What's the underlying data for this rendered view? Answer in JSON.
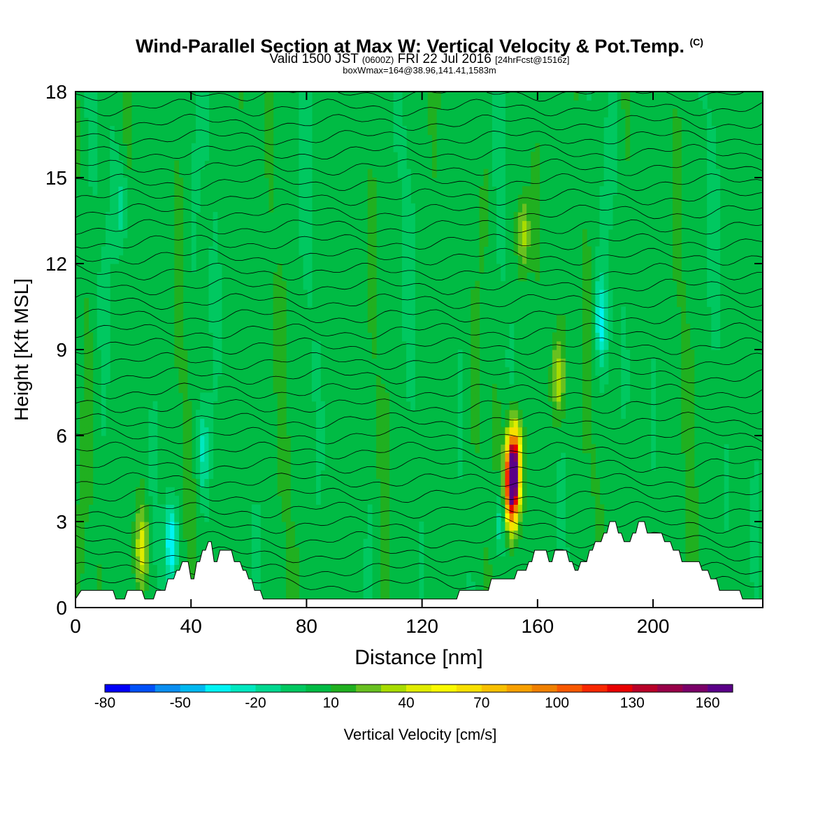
{
  "header": {
    "title": "Wind-Parallel Section at Max W: Vertical Velocity & Pot.Temp.",
    "copyright": "(C)",
    "valid_prefix": "Valid 1500 JST",
    "zulu": "(0600Z)",
    "valid_date": "FRI 22 Jul 2016",
    "forecast": "[24hrFcst@1516z]",
    "boxinfo": "boxWmax=164@38.96,141.41,1583m"
  },
  "chart_data": {
    "type": "heatmap",
    "xlabel": "Distance [nm]",
    "ylabel": "Height [Kft MSL]",
    "xlim": [
      0,
      238
    ],
    "ylim": [
      0,
      18
    ],
    "xticks": [
      0,
      40,
      80,
      120,
      160,
      200
    ],
    "yticks": [
      0,
      3,
      6,
      9,
      12,
      15,
      18
    ],
    "colorbar": {
      "label": "Vertical Velocity [cm/s]",
      "tick_labels": [
        -80,
        -50,
        -20,
        10,
        40,
        70,
        100,
        130,
        160
      ],
      "min": -80,
      "step": 10,
      "colors": [
        "#0000f8",
        "#0050f8",
        "#0a8ef0",
        "#00b8f0",
        "#00f4f4",
        "#00e8c0",
        "#00d890",
        "#00c860",
        "#00bb44",
        "#20b020",
        "#68c020",
        "#a8dc00",
        "#e0ec00",
        "#fafa00",
        "#f8e000",
        "#f8c000",
        "#f8a000",
        "#f08000",
        "#f85800",
        "#f82800",
        "#e80000",
        "#b80028",
        "#980048",
        "#7a0068",
        "#5a0088"
      ]
    },
    "max_w": 164,
    "terrain": [
      [
        0,
        0.3
      ],
      [
        2,
        0.6
      ],
      [
        13,
        0.6
      ],
      [
        14,
        0.3
      ],
      [
        17,
        0.3
      ],
      [
        18,
        0.6
      ],
      [
        23,
        0.6
      ],
      [
        24,
        0.3
      ],
      [
        27,
        0.3
      ],
      [
        28,
        0.6
      ],
      [
        31,
        0.6
      ],
      [
        32,
        1.0
      ],
      [
        34,
        1.0
      ],
      [
        35,
        1.3
      ],
      [
        36,
        1.3
      ],
      [
        37,
        1.6
      ],
      [
        39,
        1.6
      ],
      [
        40,
        1.0
      ],
      [
        41,
        1.0
      ],
      [
        42,
        1.6
      ],
      [
        43,
        1.6
      ],
      [
        44,
        2.0
      ],
      [
        45,
        2.0
      ],
      [
        46,
        2.3
      ],
      [
        47,
        2.3
      ],
      [
        48,
        1.6
      ],
      [
        49,
        1.6
      ],
      [
        50,
        2.0
      ],
      [
        54,
        2.0
      ],
      [
        55,
        1.6
      ],
      [
        57,
        1.6
      ],
      [
        58,
        1.3
      ],
      [
        59,
        1.3
      ],
      [
        60,
        1.0
      ],
      [
        61,
        1.0
      ],
      [
        62,
        0.6
      ],
      [
        64,
        0.6
      ],
      [
        65,
        0.3
      ],
      [
        132,
        0.3
      ],
      [
        133,
        0.6
      ],
      [
        143,
        0.6
      ],
      [
        144,
        1.0
      ],
      [
        152,
        1.0
      ],
      [
        153,
        1.3
      ],
      [
        156,
        1.3
      ],
      [
        157,
        1.6
      ],
      [
        158,
        1.6
      ],
      [
        159,
        2.0
      ],
      [
        163,
        2.0
      ],
      [
        164,
        1.6
      ],
      [
        165,
        1.6
      ],
      [
        166,
        2.0
      ],
      [
        170,
        2.0
      ],
      [
        171,
        1.6
      ],
      [
        172,
        1.6
      ],
      [
        173,
        1.3
      ],
      [
        174,
        1.3
      ],
      [
        175,
        1.6
      ],
      [
        177,
        1.6
      ],
      [
        178,
        2.0
      ],
      [
        179,
        2.0
      ],
      [
        180,
        2.3
      ],
      [
        182,
        2.3
      ],
      [
        183,
        2.6
      ],
      [
        184,
        2.6
      ],
      [
        185,
        3.0
      ],
      [
        187,
        3.0
      ],
      [
        188,
        2.6
      ],
      [
        189,
        2.6
      ],
      [
        190,
        2.3
      ],
      [
        192,
        2.3
      ],
      [
        193,
        2.6
      ],
      [
        194,
        2.6
      ],
      [
        195,
        3.0
      ],
      [
        197,
        3.0
      ],
      [
        198,
        2.6
      ],
      [
        203,
        2.6
      ],
      [
        204,
        2.3
      ],
      [
        206,
        2.3
      ],
      [
        207,
        2.0
      ],
      [
        209,
        2.0
      ],
      [
        210,
        1.6
      ],
      [
        216,
        1.6
      ],
      [
        217,
        1.3
      ],
      [
        219,
        1.3
      ],
      [
        220,
        1.0
      ],
      [
        222,
        1.0
      ],
      [
        223,
        0.6
      ],
      [
        230,
        0.6
      ],
      [
        231,
        0.3
      ],
      [
        238,
        0.3
      ]
    ],
    "w_features": [
      {
        "x": 151,
        "h": 4.3,
        "w": 160
      },
      {
        "x": 152,
        "h": 5.0,
        "w": 100
      },
      {
        "x": 23,
        "h": 2.1,
        "w": 45
      },
      {
        "x": 33,
        "h": 2.3,
        "w": -40
      },
      {
        "x": 44,
        "h": 5.5,
        "w": -20
      },
      {
        "x": 147,
        "h": 3.0,
        "w": -20
      },
      {
        "x": 182,
        "h": 10.0,
        "w": -30
      },
      {
        "x": 167,
        "h": 8.0,
        "w": 40
      },
      {
        "x": 155,
        "h": 13.0,
        "w": 40
      },
      {
        "x": 16,
        "h": 14.0,
        "w": -15
      }
    ]
  }
}
